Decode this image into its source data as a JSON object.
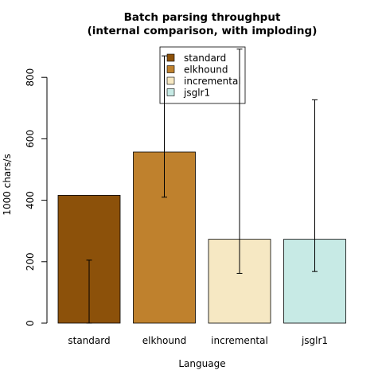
{
  "chart_data": {
    "type": "bar",
    "title": "Batch parsing throughput",
    "subtitle": "(internal comparison, with imploding)",
    "xlabel": "Language",
    "ylabel": "1000 chars/s",
    "ylim": [
      0,
      900
    ],
    "yticks": [
      0,
      200,
      400,
      600,
      800
    ],
    "grid": false,
    "legend_position": "top-center",
    "categories": [
      "standard",
      "elkhound",
      "incremental",
      "jsglr1"
    ],
    "values": [
      416,
      557,
      273,
      273
    ],
    "error_low": [
      0,
      410,
      162,
      168
    ],
    "error_high": [
      205,
      870,
      892,
      727
    ],
    "colors": [
      "#8c510a",
      "#bf812d",
      "#f6e8c3",
      "#c7eae5"
    ],
    "legend": [
      "standard",
      "elkhound",
      "incremental",
      "jsglr1"
    ]
  }
}
